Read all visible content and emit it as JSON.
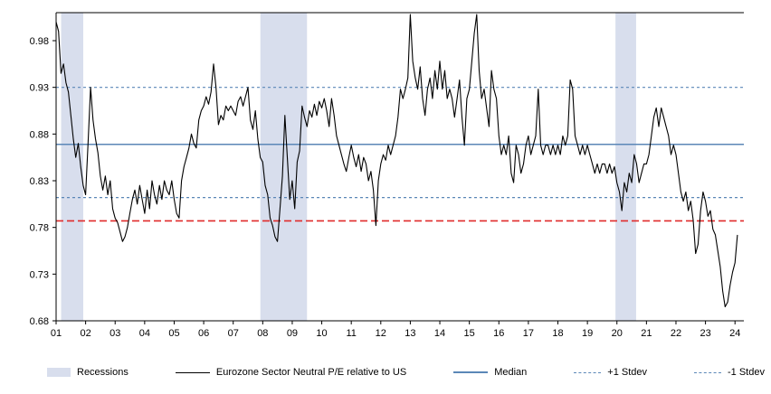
{
  "colors": {
    "recession_band": "#d8deed",
    "series": "#000000",
    "median": "#5b87b7",
    "stdev": "#5b87b7",
    "red_dashed": "#e02b2b",
    "axis": "#000000"
  },
  "legend": {
    "items": [
      {
        "name": "recessions",
        "type": "band",
        "label": "Recessions"
      },
      {
        "name": "series",
        "type": "line-black",
        "label": "Eurozone Sector Neutral P/E relative to US"
      },
      {
        "name": "median",
        "type": "line-blue",
        "label": "Median"
      },
      {
        "name": "plus1-stdev",
        "type": "dash-blue",
        "label": "+1 Stdev"
      },
      {
        "name": "minus1-stdev",
        "type": "dash-blue",
        "label": "-1 Stdev"
      }
    ]
  },
  "chart_data": {
    "type": "line",
    "title": "",
    "series_name": "Eurozone Sector Neutral P/E relative to US",
    "x_start": 2001,
    "points_per_year": 12,
    "xlim": [
      2001,
      2024.3
    ],
    "ylim": [
      0.68,
      1.01
    ],
    "y_ticks": [
      0.68,
      0.73,
      0.78,
      0.83,
      0.88,
      0.93,
      0.98
    ],
    "x_tick_labels": [
      "01",
      "02",
      "03",
      "04",
      "05",
      "06",
      "07",
      "08",
      "09",
      "10",
      "11",
      "12",
      "13",
      "14",
      "15",
      "16",
      "17",
      "18",
      "19",
      "20",
      "21",
      "22",
      "23",
      "24"
    ],
    "median_value": 0.869,
    "plus1_stdev_value": 0.93,
    "minus1_stdev_value": 0.812,
    "red_dashed_value": 0.787,
    "recessions": [
      [
        2001.17,
        2001.92
      ],
      [
        2007.92,
        2009.5
      ],
      [
        2019.95,
        2020.65
      ]
    ],
    "values": [
      1.0,
      0.99,
      0.945,
      0.955,
      0.935,
      0.925,
      0.9,
      0.875,
      0.855,
      0.87,
      0.845,
      0.825,
      0.815,
      0.87,
      0.93,
      0.895,
      0.875,
      0.86,
      0.835,
      0.82,
      0.835,
      0.815,
      0.83,
      0.8,
      0.79,
      0.785,
      0.775,
      0.765,
      0.77,
      0.78,
      0.795,
      0.81,
      0.82,
      0.805,
      0.825,
      0.81,
      0.795,
      0.82,
      0.8,
      0.83,
      0.815,
      0.805,
      0.825,
      0.81,
      0.83,
      0.82,
      0.815,
      0.83,
      0.81,
      0.795,
      0.79,
      0.83,
      0.845,
      0.855,
      0.865,
      0.88,
      0.87,
      0.865,
      0.895,
      0.905,
      0.91,
      0.92,
      0.912,
      0.925,
      0.955,
      0.93,
      0.89,
      0.9,
      0.895,
      0.91,
      0.905,
      0.91,
      0.905,
      0.9,
      0.915,
      0.92,
      0.91,
      0.92,
      0.93,
      0.895,
      0.885,
      0.905,
      0.875,
      0.855,
      0.85,
      0.825,
      0.815,
      0.79,
      0.782,
      0.77,
      0.765,
      0.8,
      0.835,
      0.9,
      0.855,
      0.81,
      0.83,
      0.8,
      0.85,
      0.862,
      0.91,
      0.898,
      0.888,
      0.905,
      0.898,
      0.912,
      0.9,
      0.915,
      0.908,
      0.918,
      0.905,
      0.888,
      0.918,
      0.9,
      0.878,
      0.868,
      0.858,
      0.848,
      0.84,
      0.855,
      0.868,
      0.855,
      0.845,
      0.858,
      0.84,
      0.855,
      0.848,
      0.83,
      0.84,
      0.82,
      0.782,
      0.83,
      0.848,
      0.858,
      0.852,
      0.868,
      0.858,
      0.868,
      0.878,
      0.898,
      0.928,
      0.918,
      0.928,
      0.94,
      1.008,
      0.958,
      0.94,
      0.928,
      0.952,
      0.918,
      0.9,
      0.928,
      0.94,
      0.918,
      0.948,
      0.928,
      0.958,
      0.928,
      0.948,
      0.918,
      0.928,
      0.918,
      0.898,
      0.918,
      0.938,
      0.898,
      0.868,
      0.918,
      0.928,
      0.958,
      0.988,
      1.008,
      0.948,
      0.918,
      0.928,
      0.908,
      0.888,
      0.948,
      0.928,
      0.918,
      0.878,
      0.858,
      0.868,
      0.858,
      0.878,
      0.838,
      0.828,
      0.868,
      0.858,
      0.838,
      0.848,
      0.868,
      0.878,
      0.858,
      0.868,
      0.878,
      0.928,
      0.868,
      0.858,
      0.868,
      0.868,
      0.858,
      0.868,
      0.858,
      0.868,
      0.858,
      0.878,
      0.868,
      0.878,
      0.938,
      0.928,
      0.878,
      0.868,
      0.858,
      0.868,
      0.858,
      0.868,
      0.858,
      0.848,
      0.838,
      0.848,
      0.838,
      0.848,
      0.848,
      0.838,
      0.848,
      0.838,
      0.845,
      0.828,
      0.818,
      0.798,
      0.828,
      0.818,
      0.838,
      0.828,
      0.858,
      0.848,
      0.828,
      0.838,
      0.848,
      0.848,
      0.858,
      0.878,
      0.898,
      0.908,
      0.888,
      0.908,
      0.898,
      0.888,
      0.878,
      0.858,
      0.868,
      0.858,
      0.838,
      0.818,
      0.808,
      0.818,
      0.798,
      0.808,
      0.788,
      0.752,
      0.762,
      0.798,
      0.818,
      0.808,
      0.792,
      0.798,
      0.778,
      0.772,
      0.755,
      0.738,
      0.712,
      0.695,
      0.7,
      0.718,
      0.732,
      0.742,
      0.772
    ]
  }
}
